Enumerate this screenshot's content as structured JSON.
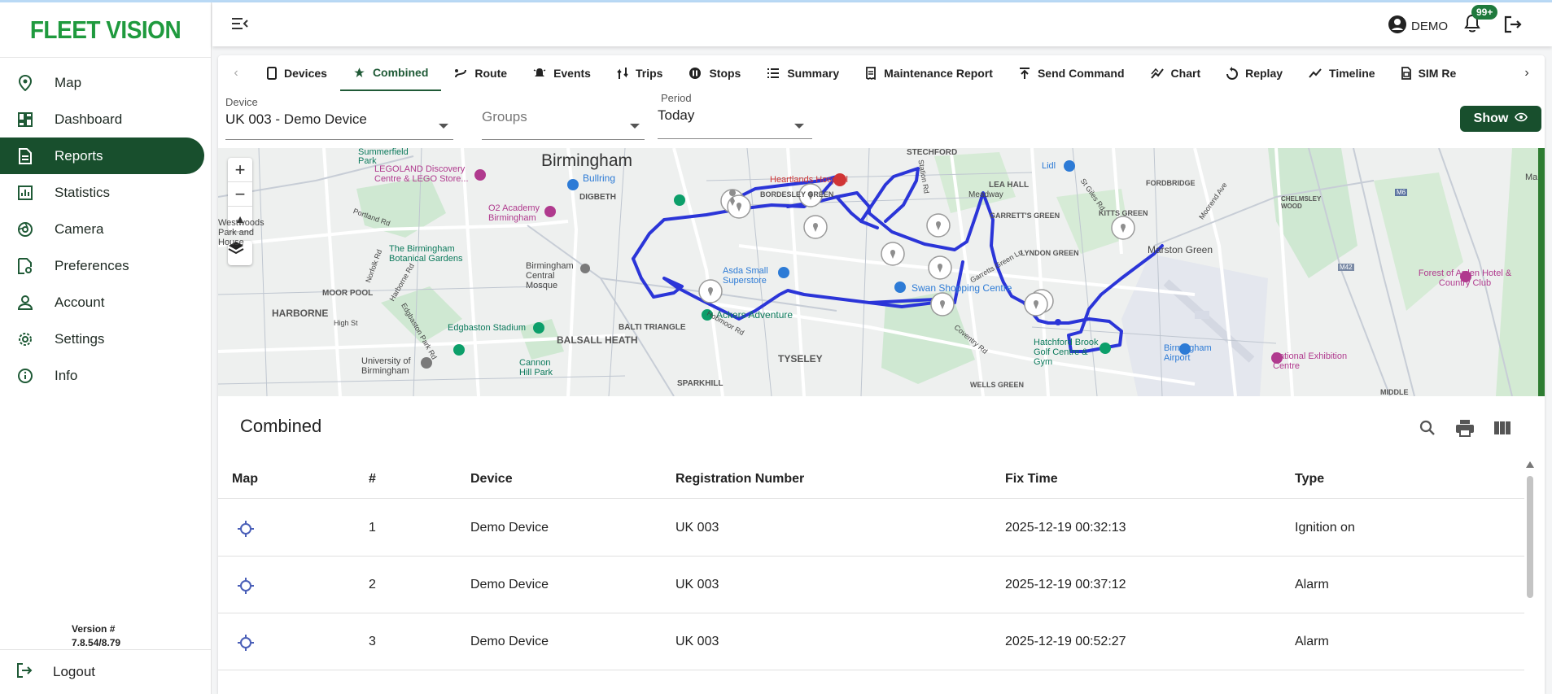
{
  "app": {
    "logo": "FLEET VISION"
  },
  "sidebar": {
    "items": [
      {
        "label": "Map",
        "icon": "map-pin-icon"
      },
      {
        "label": "Dashboard",
        "icon": "dashboard-icon"
      },
      {
        "label": "Reports",
        "icon": "report-icon",
        "active": true
      },
      {
        "label": "Statistics",
        "icon": "statistics-icon"
      },
      {
        "label": "Camera",
        "icon": "camera-icon"
      },
      {
        "label": "Preferences",
        "icon": "preferences-icon"
      },
      {
        "label": "Account",
        "icon": "account-icon"
      },
      {
        "label": "Settings",
        "icon": "gear-icon"
      },
      {
        "label": "Info",
        "icon": "info-icon"
      }
    ],
    "version_label": "Version #",
    "version_value": "7.8.54/8.79",
    "logout_label": "Logout"
  },
  "header": {
    "user_name": "DEMO",
    "notification_count": "99+"
  },
  "tabs": [
    {
      "label": "Devices",
      "icon": "phone-icon"
    },
    {
      "label": "Combined",
      "icon": "star-icon",
      "active": true
    },
    {
      "label": "Route",
      "icon": "route-icon"
    },
    {
      "label": "Events",
      "icon": "bell-ring-icon"
    },
    {
      "label": "Trips",
      "icon": "trips-icon"
    },
    {
      "label": "Stops",
      "icon": "pause-icon"
    },
    {
      "label": "Summary",
      "icon": "list-icon"
    },
    {
      "label": "Maintenance Report",
      "icon": "receipt-icon"
    },
    {
      "label": "Send Command",
      "icon": "upload-icon"
    },
    {
      "label": "Chart",
      "icon": "chart-icon"
    },
    {
      "label": "Replay",
      "icon": "replay-icon"
    },
    {
      "label": "Timeline",
      "icon": "timeline-icon"
    },
    {
      "label": "SIM Re",
      "icon": "sim-icon"
    }
  ],
  "filters": {
    "device_label": "Device",
    "device_value": "UK 003 - Demo Device",
    "groups_placeholder": "Groups",
    "period_label": "Period",
    "period_value": "Today",
    "show_label": "Show"
  },
  "map": {
    "labels": [
      "Birmingham",
      "Bullring",
      "DIGBETH",
      "LEGOLAND Discovery Centre & LEGO Store...",
      "Summerfield Park",
      "O2 Academy Birmingham",
      "The Birmingham Botanical Gardens",
      "MOOR POOL",
      "HARBORNE",
      "Birmingham Central Mosque",
      "Edgbaston Stadium",
      "BALTI TRIANGLE",
      "BALSALL HEATH",
      "Cannon Hill Park",
      "University of Birmingham",
      "SPARKHILL",
      "TYSELEY",
      "Ackers Adventure",
      "Asda Small Superstore",
      "Heartlands Hospital",
      "STECHFORD",
      "LEA HALL",
      "Lidl",
      "FORDBRIDGE",
      "GARRETT'S GREEN",
      "KITTS GREEN",
      "Marston Green",
      "CHELMSLEY WOOD",
      "LYNDON GREEN",
      "Swan Shopping Centre",
      "Hatchford Brook Golf Centre & Gym",
      "Birmingham Airport",
      "National Exhibition Centre",
      "Forest of Arden Hotel & Country Club",
      "WELLS GREEN",
      "Meadway",
      "Moorend Ave",
      "St Giles Rd",
      "Station Rd",
      "Garretts Green Ln",
      "Coventry Rd",
      "Hobmoor Rd",
      "M42",
      "M6",
      "BORDESLEY GREEN",
      "Westwoods Park and House",
      "Portland Rd",
      "Norfolk Rd",
      "High St",
      "Harborne Rd",
      "Edgbaston Park Rd",
      "MIDDLE",
      "Ma"
    ]
  },
  "table": {
    "title": "Combined",
    "columns": [
      "Map",
      "#",
      "Device",
      "Registration Number",
      "Fix Time",
      "Type"
    ],
    "rows": [
      {
        "num": "1",
        "device": "Demo Device",
        "reg": "UK 003",
        "fix_time": "2025-12-19 00:32:13",
        "type": "Ignition on"
      },
      {
        "num": "2",
        "device": "Demo Device",
        "reg": "UK 003",
        "fix_time": "2025-12-19 00:37:12",
        "type": "Alarm"
      },
      {
        "num": "3",
        "device": "Demo Device",
        "reg": "UK 003",
        "fix_time": "2025-12-19 00:52:27",
        "type": "Alarm"
      }
    ]
  },
  "colors": {
    "brand": "#184f2d",
    "logo": "#1f9a3e",
    "route": "#2b35d8"
  }
}
